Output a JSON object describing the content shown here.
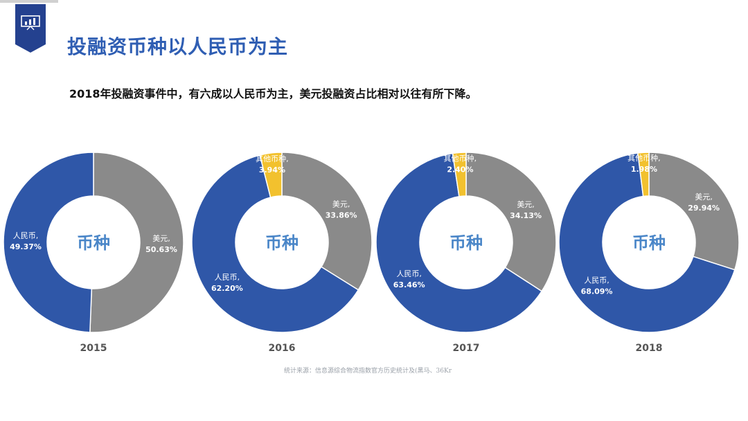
{
  "header": {
    "title": "投融资币种以人民币为主",
    "subtitle": "2018年投融资事件中，有六成以人民币为主，美元投融资占比相对以往有所下降。"
  },
  "source_note": "统计来源：信息源综合物流指数官方历史统计及(黑马、36Kr",
  "colors": {
    "rmb": "#2f57a8",
    "usd": "#8a8a8a",
    "other": "#f2c12e",
    "center_text": "#4a86c8",
    "badge": "#24418f"
  },
  "chart_data": [
    {
      "type": "donut",
      "year": "2015",
      "center_label": "币种",
      "slices": [
        {
          "name": "美元",
          "label": "美元,",
          "value": 50.63,
          "display": "50.63%"
        },
        {
          "name": "人民币",
          "label": "人民币,",
          "value": 49.37,
          "display": "49.37%"
        }
      ]
    },
    {
      "type": "donut",
      "year": "2016",
      "center_label": "币种",
      "slices": [
        {
          "name": "美元",
          "label": "美元,",
          "value": 33.86,
          "display": "33.86%"
        },
        {
          "name": "人民币",
          "label": "人民币,",
          "value": 62.2,
          "display": "62.20%"
        },
        {
          "name": "其他币种",
          "label": "其他币种,",
          "value": 3.94,
          "display": "3.94%"
        }
      ]
    },
    {
      "type": "donut",
      "year": "2017",
      "center_label": "币种",
      "slices": [
        {
          "name": "美元",
          "label": "美元,",
          "value": 34.13,
          "display": "34.13%"
        },
        {
          "name": "人民币",
          "label": "人民币,",
          "value": 63.46,
          "display": "63.46%"
        },
        {
          "name": "其他币种",
          "label": "其他币种,",
          "value": 2.4,
          "display": "2.40%"
        }
      ]
    },
    {
      "type": "donut",
      "year": "2018",
      "center_label": "币种",
      "slices": [
        {
          "name": "美元",
          "label": "美元,",
          "value": 29.94,
          "display": "29.94%"
        },
        {
          "name": "人民币",
          "label": "人民币,",
          "value": 68.09,
          "display": "68.09%"
        },
        {
          "name": "其他币种",
          "label": "其他币种,",
          "value": 1.98,
          "display": "1.98%"
        }
      ]
    }
  ]
}
